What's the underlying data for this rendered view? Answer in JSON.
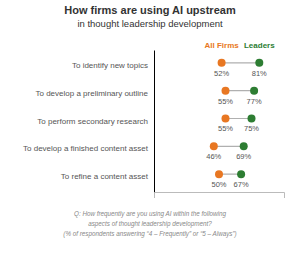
{
  "chart_data": {
    "type": "dumbbell",
    "title": "How firms are using AI upstream",
    "subtitle": "in thought leadership development",
    "categories": [
      "To identify new topics",
      "To develop a preliminary outline",
      "To perform secondary research",
      "To develop a finished content asset",
      "To refine a content asset"
    ],
    "series": [
      {
        "name": "All Firms",
        "color": "#e87722",
        "values": [
          52,
          55,
          55,
          46,
          50
        ],
        "value_labels": [
          "52%",
          "55%",
          "55%",
          "46%",
          "50%"
        ]
      },
      {
        "name": "Leaders",
        "color": "#2d7d32",
        "values": [
          81,
          77,
          75,
          69,
          67
        ],
        "value_labels": [
          "81%",
          "77%",
          "75%",
          "69%",
          "67%"
        ]
      }
    ],
    "xlim": [
      0,
      100
    ],
    "tick_labels": false,
    "data_labels": true,
    "annotations": [
      "Q: How frequently are you using AI within the following",
      "aspects of thought leadership development?",
      "(% of respondents answering “4 – Frequently” or “5 – Always”)"
    ]
  }
}
